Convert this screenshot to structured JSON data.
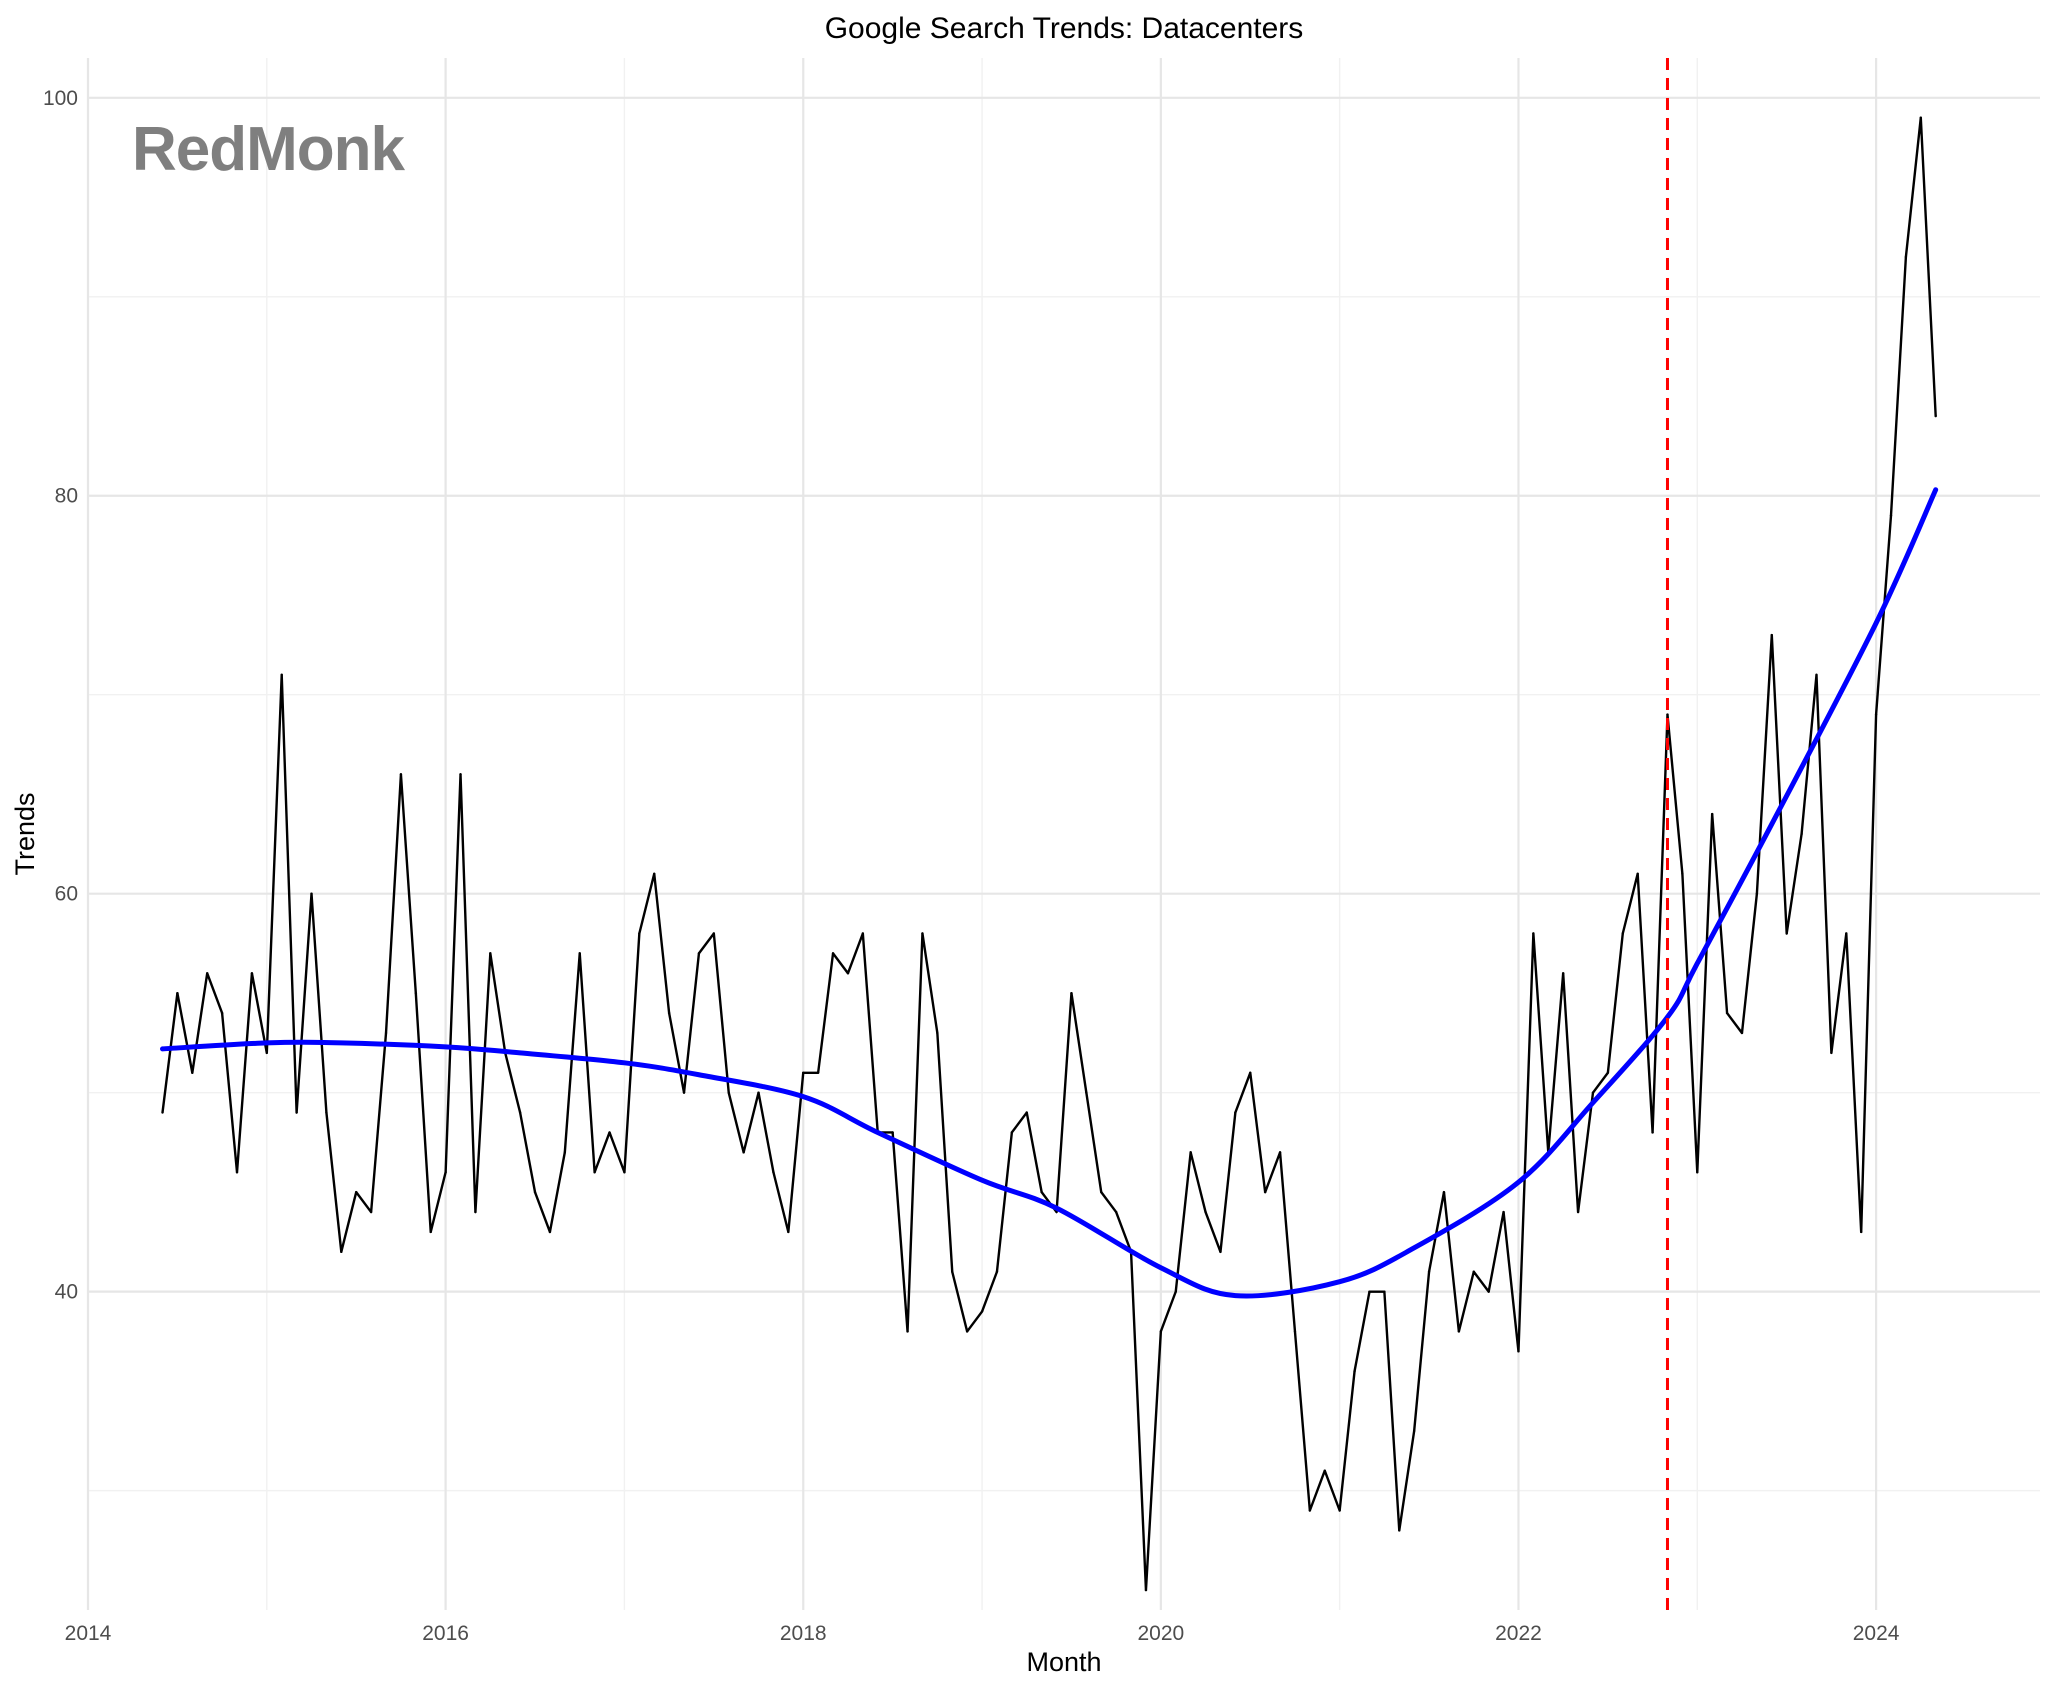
{
  "watermark": "RedMonk",
  "chart_data": {
    "type": "line",
    "title": "Google Search Trends: Datacenters",
    "xlabel": "Month",
    "ylabel": "Trends",
    "x_ticks": [
      2014,
      2016,
      2018,
      2020,
      2022,
      2024
    ],
    "y_ticks": [
      40,
      60,
      80,
      100
    ],
    "xlim": [
      "2014-01",
      "2024-12"
    ],
    "ylim": [
      24,
      102
    ],
    "grid": true,
    "legend": "none",
    "series": [
      {
        "color": "#000000",
        "style": "solid",
        "x": [
          "2014-06",
          "2014-07",
          "2014-08",
          "2014-09",
          "2014-10",
          "2014-11",
          "2014-12",
          "2015-01",
          "2015-02",
          "2015-03",
          "2015-04",
          "2015-05",
          "2015-06",
          "2015-07",
          "2015-08",
          "2015-09",
          "2015-10",
          "2015-11",
          "2015-12",
          "2016-01",
          "2016-02",
          "2016-03",
          "2016-04",
          "2016-05",
          "2016-06",
          "2016-07",
          "2016-08",
          "2016-09",
          "2016-10",
          "2016-11",
          "2016-12",
          "2017-01",
          "2017-02",
          "2017-03",
          "2017-04",
          "2017-05",
          "2017-06",
          "2017-07",
          "2017-08",
          "2017-09",
          "2017-10",
          "2017-11",
          "2017-12",
          "2018-01",
          "2018-02",
          "2018-03",
          "2018-04",
          "2018-05",
          "2018-06",
          "2018-07",
          "2018-08",
          "2018-09",
          "2018-10",
          "2018-11",
          "2018-12",
          "2019-01",
          "2019-02",
          "2019-03",
          "2019-04",
          "2019-05",
          "2019-06",
          "2019-07",
          "2019-08",
          "2019-09",
          "2019-10",
          "2019-11",
          "2019-12",
          "2020-01",
          "2020-02",
          "2020-03",
          "2020-04",
          "2020-05",
          "2020-06",
          "2020-07",
          "2020-08",
          "2020-09",
          "2020-10",
          "2020-11",
          "2020-12",
          "2021-01",
          "2021-02",
          "2021-03",
          "2021-04",
          "2021-05",
          "2021-06",
          "2021-07",
          "2021-08",
          "2021-09",
          "2021-10",
          "2021-11",
          "2021-12",
          "2022-01",
          "2022-02",
          "2022-03",
          "2022-04",
          "2022-05",
          "2022-06",
          "2022-07",
          "2022-08",
          "2022-09",
          "2022-10",
          "2022-11",
          "2022-12",
          "2023-01",
          "2023-02",
          "2023-03",
          "2023-04",
          "2023-05",
          "2023-06",
          "2023-07",
          "2023-08",
          "2023-09",
          "2023-10",
          "2023-11",
          "2023-12",
          "2024-01",
          "2024-02",
          "2024-03",
          "2024-04",
          "2024-05"
        ],
        "values": [
          49,
          55,
          51,
          56,
          54,
          46,
          56,
          52,
          71,
          49,
          60,
          49,
          42,
          45,
          44,
          53,
          66,
          55,
          43,
          46,
          66,
          44,
          57,
          52,
          49,
          45,
          43,
          47,
          57,
          46,
          48,
          46,
          58,
          61,
          54,
          50,
          57,
          58,
          50,
          47,
          50,
          46,
          43,
          51,
          51,
          57,
          56,
          58,
          48,
          48,
          38,
          58,
          53,
          41,
          38,
          39,
          41,
          48,
          49,
          45,
          44,
          55,
          50,
          45,
          44,
          42,
          25,
          38,
          40,
          47,
          44,
          42,
          49,
          51,
          45,
          47,
          38,
          29,
          31,
          29,
          36,
          40,
          40,
          28,
          33,
          41,
          45,
          38,
          41,
          40,
          44,
          37,
          58,
          47,
          56,
          44,
          50,
          51,
          58,
          61,
          48,
          69,
          61,
          46,
          64,
          54,
          53,
          60,
          73,
          58,
          63,
          71,
          52,
          58,
          43,
          69,
          79,
          92,
          99,
          84
        ]
      },
      {
        "color": "#0000ff",
        "style": "smooth",
        "x": [
          "2014-06",
          "2015-01",
          "2015-06",
          "2016-01",
          "2016-06",
          "2017-01",
          "2017-06",
          "2018-01",
          "2018-06",
          "2019-01",
          "2019-06",
          "2020-01",
          "2020-06",
          "2021-01",
          "2021-06",
          "2022-01",
          "2022-06",
          "2022-11",
          "2023-01",
          "2023-06",
          "2024-01",
          "2024-05"
        ],
        "values": [
          52.2,
          52.5,
          52.5,
          52.3,
          52.0,
          51.5,
          50.9,
          49.8,
          48.0,
          45.6,
          44.2,
          41.2,
          39.8,
          40.5,
          42.2,
          45.5,
          49.5,
          53.8,
          56.5,
          63.5,
          73.6,
          80.3
        ]
      }
    ],
    "annotations": [
      {
        "type": "vline",
        "x": "2022-11",
        "color": "#ff0000",
        "style": "dashed"
      }
    ]
  }
}
